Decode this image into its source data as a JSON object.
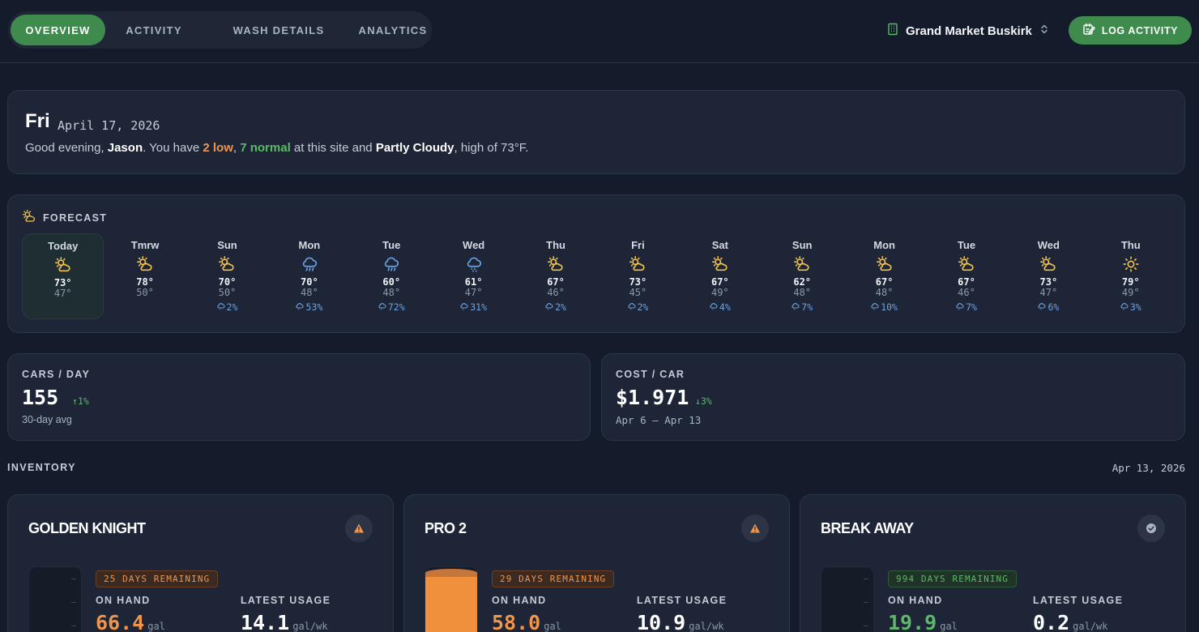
{
  "nav": {
    "tabs": [
      {
        "label": "OVERVIEW",
        "active": true
      },
      {
        "label": "ACTIVITY",
        "active": false
      },
      {
        "label": "WASH DETAILS",
        "active": false
      },
      {
        "label": "ANALYTICS",
        "active": false
      }
    ],
    "site_name": "Grand Market Buskirk",
    "log_button": "LOG ACTIVITY"
  },
  "greeting": {
    "day": "Fri",
    "date": "April 17, 2026",
    "prefix": "Good evening, ",
    "user": "Jason",
    "mid1": ". You have ",
    "low": "2 low",
    "comma": ", ",
    "normal": "7 normal",
    "mid2": " at this site and ",
    "weather": "Partly Cloudy",
    "suffix": ", high of 73°F."
  },
  "forecast": {
    "title": "FORECAST",
    "days": [
      {
        "name": "Today",
        "icon": "partly-cloudy-icon",
        "high": "73°",
        "low": "47°",
        "precip": ""
      },
      {
        "name": "Tmrw",
        "icon": "partly-cloudy-icon",
        "high": "78°",
        "low": "50°",
        "precip": ""
      },
      {
        "name": "Sun",
        "icon": "partly-cloudy-icon",
        "high": "70°",
        "low": "50°",
        "precip": "2%"
      },
      {
        "name": "Mon",
        "icon": "rain-icon",
        "high": "70°",
        "low": "48°",
        "precip": "53%"
      },
      {
        "name": "Tue",
        "icon": "rain-icon",
        "high": "60°",
        "low": "48°",
        "precip": "72%"
      },
      {
        "name": "Wed",
        "icon": "drizzle-icon",
        "high": "61°",
        "low": "47°",
        "precip": "31%"
      },
      {
        "name": "Thu",
        "icon": "partly-cloudy-icon",
        "high": "67°",
        "low": "46°",
        "precip": "2%"
      },
      {
        "name": "Fri",
        "icon": "partly-cloudy-icon",
        "high": "73°",
        "low": "45°",
        "precip": "2%"
      },
      {
        "name": "Sat",
        "icon": "partly-cloudy-icon",
        "high": "67°",
        "low": "49°",
        "precip": "4%"
      },
      {
        "name": "Sun",
        "icon": "partly-cloudy-icon",
        "high": "62°",
        "low": "48°",
        "precip": "7%"
      },
      {
        "name": "Mon",
        "icon": "partly-cloudy-icon",
        "high": "67°",
        "low": "48°",
        "precip": "10%"
      },
      {
        "name": "Tue",
        "icon": "partly-cloudy-icon",
        "high": "67°",
        "low": "46°",
        "precip": "7%"
      },
      {
        "name": "Wed",
        "icon": "partly-cloudy-icon",
        "high": "73°",
        "low": "47°",
        "precip": "6%"
      },
      {
        "name": "Thu",
        "icon": "sun-icon",
        "high": "79°",
        "low": "49°",
        "precip": "3%"
      }
    ]
  },
  "stats": {
    "cars": {
      "label": "CARS / DAY",
      "value": "155",
      "change": "↑1%",
      "sub": "30-day avg"
    },
    "cost": {
      "label": "COST / CAR",
      "value": "$1.971",
      "change": "↓3%",
      "sub": "Apr 6 – Apr 13"
    }
  },
  "inventory": {
    "title": "INVENTORY",
    "date": "Apr 13, 2026",
    "on_hand_label": "ON HAND",
    "usage_label": "LATEST USAGE",
    "products": [
      {
        "name": "GOLDEN KNIGHT",
        "status": "warning",
        "remaining": "25 DAYS REMAINING",
        "on_hand": "66.4",
        "on_hand_unit": "gal",
        "usage": "14.1",
        "usage_unit": "gal/wk",
        "fill_level": 0.0
      },
      {
        "name": "PRO 2",
        "status": "warning",
        "remaining": "29 DAYS REMAINING",
        "on_hand": "58.0",
        "on_hand_unit": "gal",
        "usage": "10.9",
        "usage_unit": "gal/wk",
        "fill_level": 0.95
      },
      {
        "name": "BREAK AWAY",
        "status": "ok",
        "remaining": "994 DAYS REMAINING",
        "on_hand": "19.9",
        "on_hand_unit": "gal",
        "usage": "0.2",
        "usage_unit": "gal/wk",
        "fill_level": 0.0
      }
    ]
  },
  "colors": {
    "accent": "#3f8a4d",
    "warn": "#f0954b",
    "ok": "#5cb96a",
    "bg": "#141b2b",
    "card": "#1d2536"
  }
}
